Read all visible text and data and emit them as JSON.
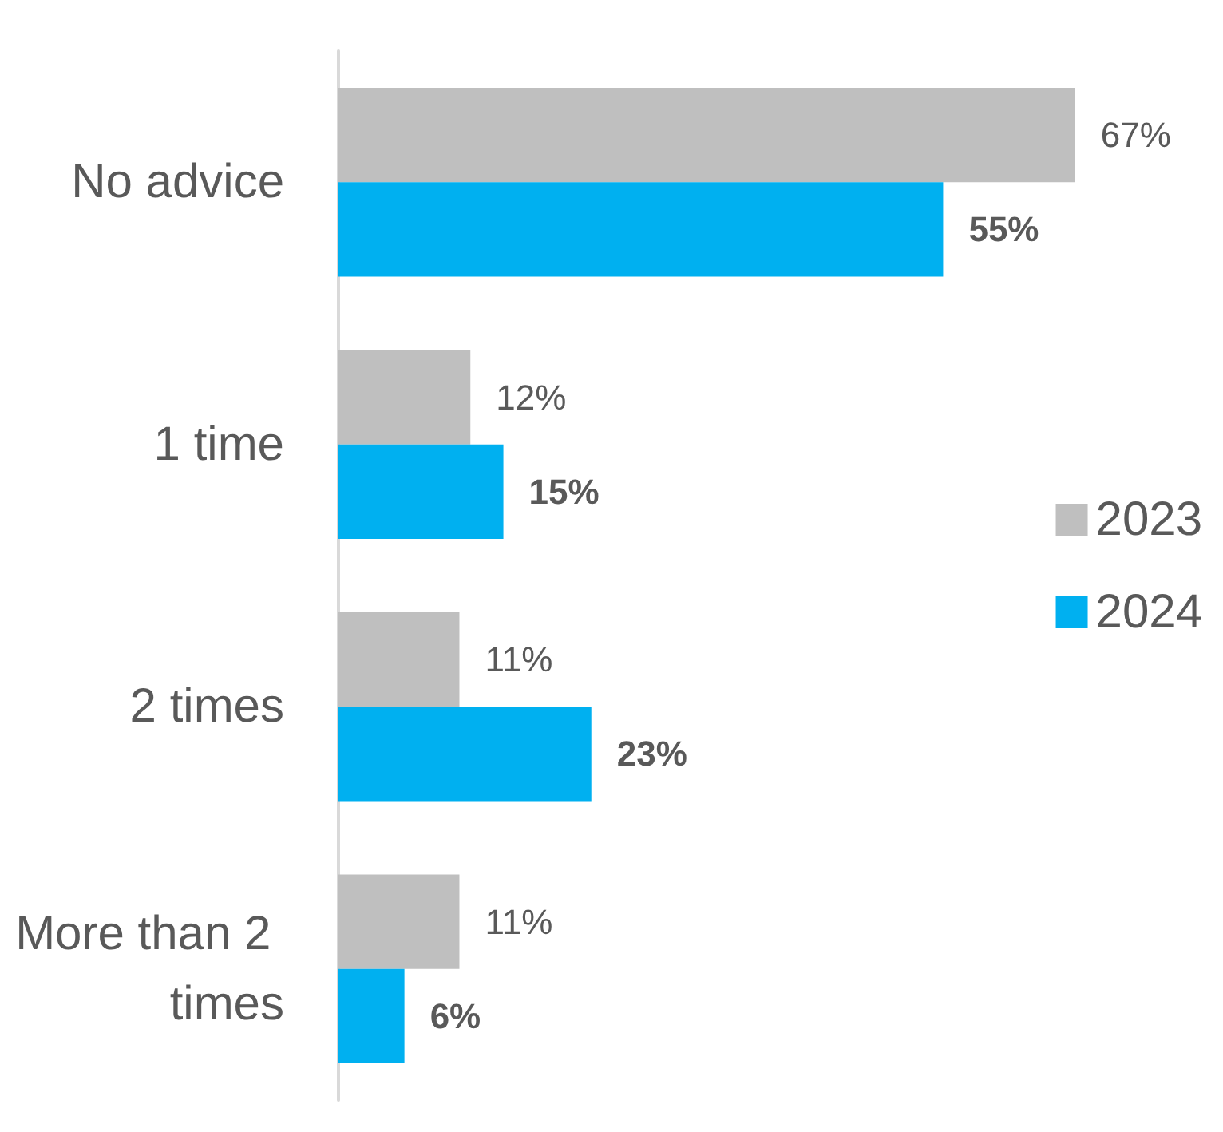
{
  "chart_data": {
    "type": "bar",
    "orientation": "horizontal",
    "categories": [
      "No advice",
      "1 time",
      "2 times",
      "More than 2 times"
    ],
    "series": [
      {
        "name": "2023",
        "color": "#bfbfbf",
        "values": [
          67,
          12,
          11,
          11
        ],
        "value_labels": [
          "67%",
          "12%",
          "11%",
          "11%"
        ]
      },
      {
        "name": "2024",
        "color": "#00b0f0",
        "values": [
          55,
          15,
          23,
          6
        ],
        "value_labels": [
          "55%",
          "15%",
          "23%",
          "6%"
        ]
      }
    ],
    "legend": "right",
    "grid": false
  }
}
